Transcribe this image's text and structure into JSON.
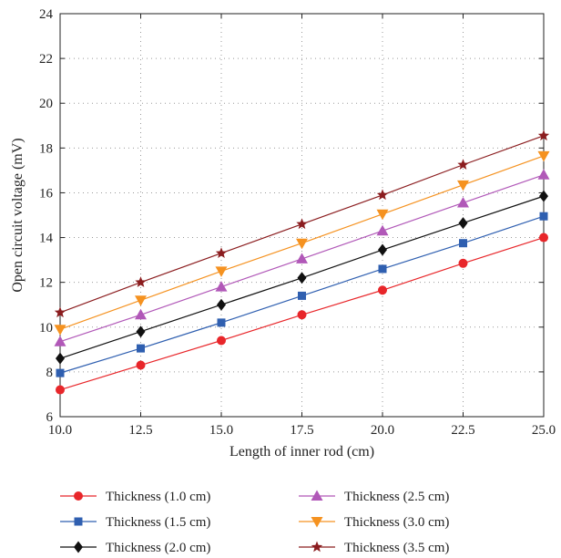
{
  "chart_data": {
    "type": "line",
    "xlabel": "Length of inner rod (cm)",
    "ylabel": "Open circuit voltage (mV)",
    "xlim": [
      10,
      25
    ],
    "ylim": [
      6,
      24
    ],
    "x_ticks": [
      "10.0",
      "12.5",
      "15.0",
      "17.5",
      "20.0",
      "22.5",
      "25.0"
    ],
    "y_ticks": [
      "6",
      "8",
      "10",
      "12",
      "14",
      "16",
      "18",
      "20",
      "22",
      "24"
    ],
    "grid": true,
    "grid_style": "dotted",
    "legend_position": "bottom",
    "x": [
      10.0,
      12.5,
      15.0,
      17.5,
      20.0,
      22.5,
      25.0
    ],
    "series": [
      {
        "name": "Thickness (1.0 cm)",
        "color": "#e8262a",
        "marker": "circle",
        "values": [
          7.2,
          8.3,
          9.4,
          10.55,
          11.65,
          12.85,
          14.0
        ]
      },
      {
        "name": "Thickness (1.5 cm)",
        "color": "#2f5fb0",
        "marker": "square",
        "values": [
          7.95,
          9.05,
          10.2,
          11.4,
          12.6,
          13.75,
          14.95
        ]
      },
      {
        "name": "Thickness (2.0 cm)",
        "color": "#111111",
        "marker": "diamond",
        "values": [
          8.6,
          9.8,
          11.0,
          12.2,
          13.45,
          14.65,
          15.85
        ]
      },
      {
        "name": "Thickness (2.5 cm)",
        "color": "#b158b8",
        "marker": "triangle-up",
        "values": [
          9.35,
          10.55,
          11.8,
          13.05,
          14.3,
          15.55,
          16.8
        ]
      },
      {
        "name": "Thickness (3.0 cm)",
        "color": "#f59220",
        "marker": "triangle-down",
        "values": [
          9.9,
          11.2,
          12.5,
          13.75,
          15.05,
          16.35,
          17.65
        ]
      },
      {
        "name": "Thickness (3.5 cm)",
        "color": "#8b1d1f",
        "marker": "star",
        "values": [
          10.65,
          12.0,
          13.3,
          14.6,
          15.9,
          17.25,
          18.55
        ]
      }
    ]
  }
}
